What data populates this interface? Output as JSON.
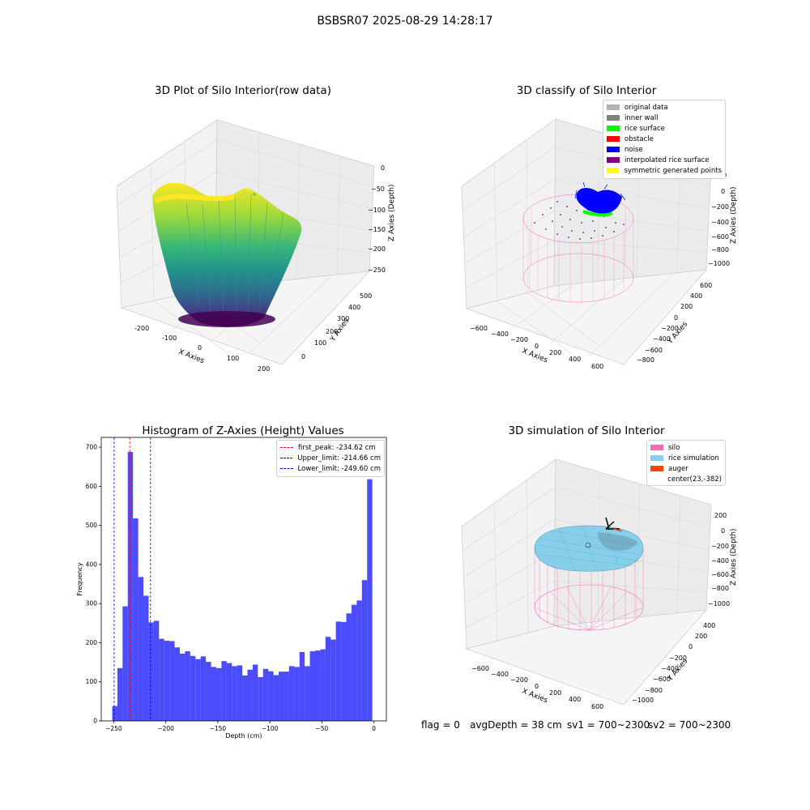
{
  "figure_title": "BSBSR07 2025-08-29 14:28:17",
  "status": {
    "flag": "flag = 0",
    "avg_depth": "avgDepth = 38 cm",
    "sv1": "sv1 = 700~2300",
    "sv2": "sv2 = 700~2300"
  },
  "panels": {
    "raw": {
      "title": "3D Plot of Silo Interior(row data)",
      "xlabel": "X Axies",
      "ylabel": "Y Axies",
      "zlabel": "Z Axies (Depth)",
      "xticks": [
        "-200",
        "-100",
        "0",
        "100",
        "200"
      ],
      "yticks": [
        "0",
        "100",
        "200",
        "300",
        "400",
        "500"
      ],
      "zticks": [
        "0",
        "−50",
        "−100",
        "−150",
        "−200",
        "−250"
      ]
    },
    "classify": {
      "title": "3D classify of Silo Interior",
      "xlabel": "X Axies",
      "ylabel": "Y Axies",
      "zlabel": "Z Axies (Depth)",
      "xticks": [
        "−600",
        "−400",
        "−200",
        "0",
        "200",
        "400",
        "600"
      ],
      "yticks": [
        "−800",
        "−600",
        "−400",
        "−200",
        "0",
        "200",
        "400",
        "600"
      ],
      "zticks": [
        "200",
        "0",
        "−200",
        "−400",
        "−600",
        "−800",
        "−1000"
      ],
      "legend": [
        {
          "label": "original data",
          "color": "#b3b3b3"
        },
        {
          "label": "inner wall",
          "color": "#808080"
        },
        {
          "label": "rice surface",
          "color": "#00ff00"
        },
        {
          "label": "obstacle",
          "color": "#ff0000"
        },
        {
          "label": "noise",
          "color": "#0000ff"
        },
        {
          "label": "interpolated rice surface",
          "color": "#800080"
        },
        {
          "label": "symmetric generated points",
          "color": "#ffff00"
        }
      ]
    },
    "simulation": {
      "title": "3D simulation of Silo Interior",
      "xlabel": "X Axies",
      "ylabel": "Y Axies",
      "zlabel": "Z Axies (Depth)",
      "xticks": [
        "−600",
        "−400",
        "−200",
        "0",
        "200",
        "400",
        "600"
      ],
      "yticks": [
        "−1000",
        "−800",
        "−600",
        "−400",
        "−200",
        "0",
        "200",
        "400"
      ],
      "zticks": [
        "200",
        "0",
        "−200",
        "−400",
        "−600",
        "−800",
        "−1000"
      ],
      "legend": [
        {
          "label": "silo",
          "color": "#ff69b4"
        },
        {
          "label": "rice simulation",
          "color": "#87ceeb"
        },
        {
          "label": "auger",
          "color": "#ff4500"
        },
        {
          "label": "center(23,-382)",
          "color": ""
        }
      ]
    }
  },
  "chart_data": {
    "type": "bar",
    "title": "Histogram of Z-Axies (Height) Values",
    "xlabel": "Depth (cm)",
    "ylabel": "Frequency",
    "xlim": [
      -262,
      12
    ],
    "ylim": [
      0,
      725
    ],
    "xticks": [
      -250,
      -200,
      -150,
      -100,
      -50,
      0
    ],
    "xtick_labels": [
      "−250",
      "−200",
      "−150",
      "−100",
      "−50",
      "0"
    ],
    "yticks": [
      0,
      100,
      200,
      300,
      400,
      500,
      600,
      700
    ],
    "bar_color": "#0000ff",
    "bin_start": -251.5,
    "bin_width": 5,
    "values": [
      38,
      135,
      293,
      688,
      518,
      368,
      320,
      252,
      256,
      210,
      205,
      204,
      188,
      172,
      178,
      166,
      158,
      165,
      151,
      138,
      135,
      153,
      148,
      140,
      142,
      116,
      131,
      144,
      112,
      133,
      127,
      117,
      126,
      126,
      140,
      138,
      176,
      140,
      178,
      180,
      183,
      215,
      208,
      254,
      253,
      275,
      297,
      308,
      360,
      618
    ],
    "vlines": [
      {
        "label": "first_peak: -234.62 cm",
        "x": -234.62,
        "color": "#ff0000"
      },
      {
        "label": "Upper_limit: -214.66 cm",
        "x": -214.66,
        "color": "#0000ff"
      },
      {
        "label": "Lower_limit: -249.60 cm",
        "x": -249.6,
        "color": "#0000ff"
      }
    ],
    "legend_position": "top-right"
  }
}
